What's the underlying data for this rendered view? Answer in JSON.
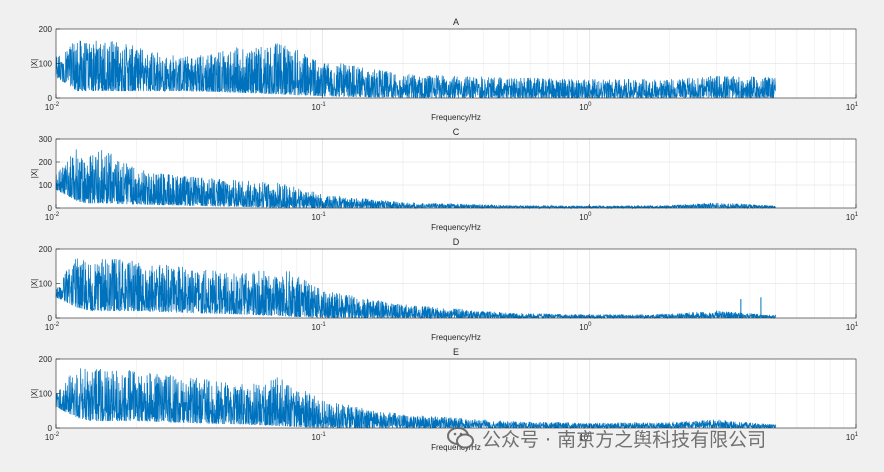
{
  "figure": {
    "background": "#f0f0f0",
    "axes_background": "#ffffff",
    "line_color": "#0072bd"
  },
  "watermark": {
    "text": "公众号 · 南京方之舆科技有限公司"
  },
  "chart_data": [
    {
      "type": "line",
      "title": "A",
      "xlabel": "Frequency/Hz",
      "ylabel": "|X|",
      "xscale": "log",
      "xlim": [
        0.01,
        10
      ],
      "ylim": [
        0,
        200
      ],
      "yticks": [
        0,
        100,
        200
      ],
      "xtick_labels": [
        {
          "base": "10",
          "exp": "-2"
        },
        {
          "base": "10",
          "exp": "-1"
        },
        {
          "base": "10",
          "exp": "0"
        },
        {
          "base": "10",
          "exp": "1"
        }
      ],
      "grid": true,
      "legend": "none",
      "series": [
        {
          "envelope_x": [
            0.01,
            0.012,
            0.0135,
            0.015,
            0.02,
            0.03,
            0.05,
            0.07,
            0.1,
            0.2,
            0.5,
            1,
            2,
            3,
            5
          ],
          "envelope_upper": [
            120,
            170,
            160,
            175,
            150,
            120,
            150,
            160,
            110,
            70,
            60,
            55,
            55,
            65,
            60
          ],
          "envelope_lower": [
            60,
            20,
            20,
            20,
            20,
            20,
            15,
            10,
            5,
            0,
            0,
            0,
            0,
            0,
            0
          ],
          "x_end": 5
        }
      ]
    },
    {
      "type": "line",
      "title": "C",
      "xlabel": "Frequency/Hz",
      "ylabel": "|X|",
      "xscale": "log",
      "xlim": [
        0.01,
        10
      ],
      "ylim": [
        0,
        300
      ],
      "yticks": [
        0,
        100,
        200,
        300
      ],
      "xtick_labels": [
        {
          "base": "10",
          "exp": "-2"
        },
        {
          "base": "10",
          "exp": "-1"
        },
        {
          "base": "10",
          "exp": "0"
        },
        {
          "base": "10",
          "exp": "1"
        }
      ],
      "grid": true,
      "legend": "none",
      "series": [
        {
          "envelope_x": [
            0.01,
            0.012,
            0.013,
            0.015,
            0.02,
            0.03,
            0.05,
            0.07,
            0.1,
            0.2,
            0.5,
            1,
            2,
            3,
            5
          ],
          "envelope_upper": [
            150,
            260,
            220,
            260,
            170,
            140,
            120,
            110,
            60,
            25,
            12,
            10,
            12,
            25,
            10
          ],
          "envelope_lower": [
            80,
            30,
            20,
            20,
            15,
            10,
            5,
            0,
            0,
            0,
            0,
            0,
            0,
            0,
            0
          ],
          "x_end": 5
        }
      ]
    },
    {
      "type": "line",
      "title": "D",
      "xlabel": "Frequency/Hz",
      "ylabel": "|X|",
      "xscale": "log",
      "xlim": [
        0.01,
        10
      ],
      "ylim": [
        0,
        200
      ],
      "yticks": [
        0,
        100,
        200
      ],
      "xtick_labels": [
        {
          "base": "10",
          "exp": "-2"
        },
        {
          "base": "10",
          "exp": "-1"
        },
        {
          "base": "10",
          "exp": "0"
        },
        {
          "base": "10",
          "exp": "1"
        }
      ],
      "grid": true,
      "legend": "none",
      "series": [
        {
          "envelope_x": [
            0.01,
            0.012,
            0.0135,
            0.015,
            0.02,
            0.03,
            0.05,
            0.07,
            0.1,
            0.2,
            0.5,
            1,
            2,
            3,
            5
          ],
          "envelope_upper": [
            100,
            180,
            170,
            175,
            170,
            150,
            130,
            150,
            80,
            40,
            15,
            10,
            12,
            22,
            8
          ],
          "envelope_lower": [
            60,
            30,
            20,
            20,
            20,
            15,
            10,
            5,
            0,
            0,
            0,
            0,
            0,
            0,
            0
          ],
          "spikes": [
            {
              "x": 3.7,
              "y": 55
            },
            {
              "x": 4.4,
              "y": 60
            }
          ],
          "x_end": 5
        }
      ]
    },
    {
      "type": "line",
      "title": "E",
      "xlabel": "Frequency/Hz",
      "ylabel": "|X|",
      "xscale": "log",
      "xlim": [
        0.01,
        10
      ],
      "ylim": [
        0,
        200
      ],
      "yticks": [
        0,
        100,
        200
      ],
      "xtick_labels": [
        {
          "base": "10",
          "exp": "-2"
        },
        {
          "base": "10",
          "exp": "-1"
        },
        {
          "base": "10",
          "exp": "0"
        },
        {
          "base": "10",
          "exp": "1"
        }
      ],
      "grid": true,
      "legend": "none",
      "series": [
        {
          "envelope_x": [
            0.01,
            0.012,
            0.0135,
            0.015,
            0.02,
            0.03,
            0.05,
            0.07,
            0.1,
            0.2,
            0.5,
            1,
            2,
            3,
            5
          ],
          "envelope_upper": [
            100,
            180,
            170,
            175,
            170,
            150,
            130,
            150,
            80,
            40,
            20,
            15,
            18,
            25,
            10
          ],
          "envelope_lower": [
            60,
            30,
            20,
            20,
            20,
            15,
            10,
            5,
            0,
            0,
            0,
            0,
            0,
            0,
            0
          ],
          "x_end": 5
        }
      ]
    }
  ]
}
